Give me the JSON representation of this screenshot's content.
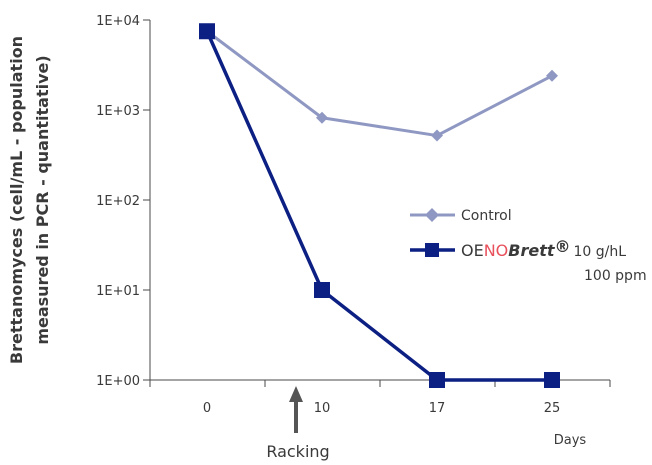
{
  "chart_data": {
    "type": "line",
    "y_scale": "log",
    "ylim": [
      1,
      10000
    ],
    "y_ticks": [
      "1E+00",
      "1E+01",
      "1E+02",
      "1E+03",
      "1E+04"
    ],
    "categories": [
      "0",
      "10",
      "17",
      "25"
    ],
    "ylabel_line1": "Brettanomyces (cell/mL - population",
    "ylabel_line2": "measured in PCR - quantitative)",
    "xlabel": "Days",
    "annotation": "Racking",
    "legend_position": "right",
    "series": [
      {
        "name": "Control",
        "marker": "diamond",
        "color": "#8f98c2",
        "values": [
          7500,
          820,
          520,
          2400
        ]
      },
      {
        "name_parts": {
          "oe": "OE",
          "no": "NO",
          "brett": "Brett",
          "reg": "®",
          "dose": "10 g/hL",
          "ppm": "100 ppm"
        },
        "marker": "square",
        "color": "#0c1f83",
        "values": [
          7500,
          10,
          1,
          1
        ]
      }
    ],
    "brand_red": "#e8505b"
  }
}
